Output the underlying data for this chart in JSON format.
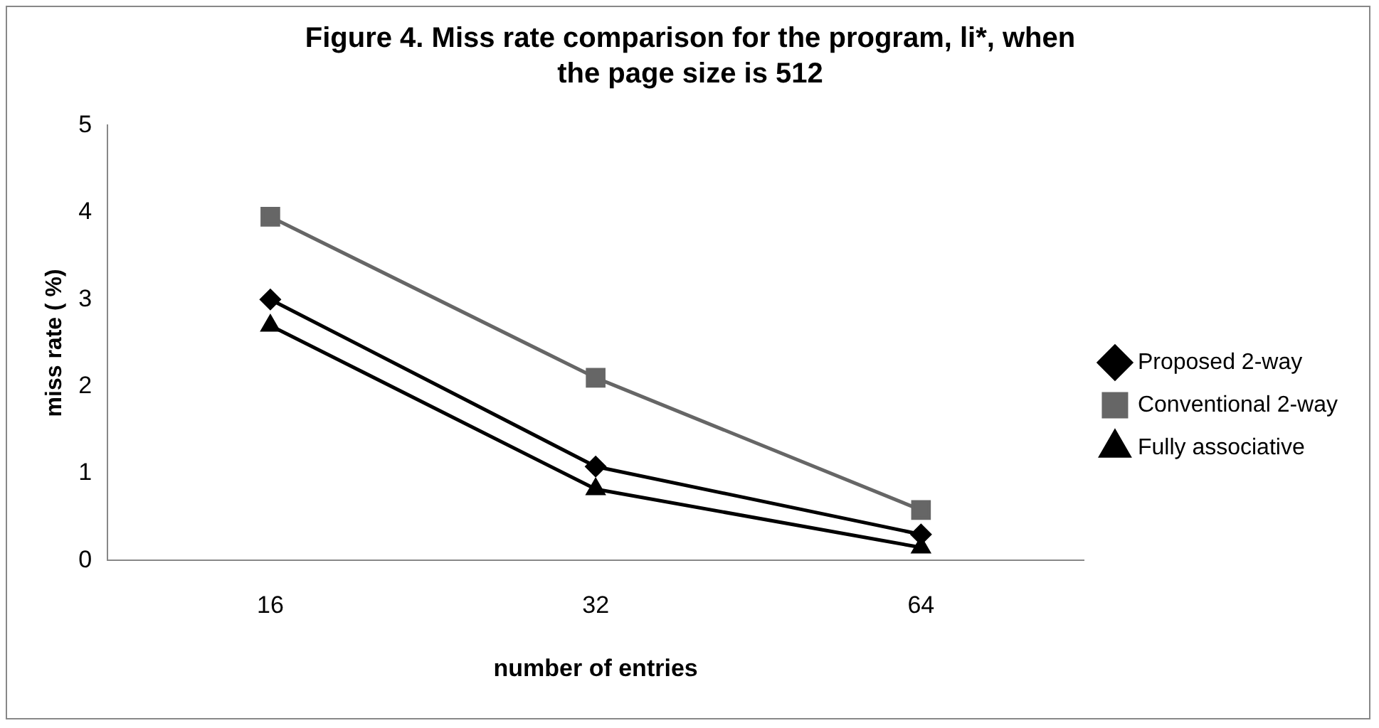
{
  "chart_data": {
    "type": "line",
    "title": "Figure 4. Miss rate comparison for the program, li*,  when the page size is 512",
    "xlabel": "number of entries",
    "ylabel": "miss rate ( %)",
    "categories": [
      "16",
      "32",
      "64"
    ],
    "ylim": [
      0,
      5
    ],
    "yticks": [
      0,
      1,
      2,
      3,
      4,
      5
    ],
    "grid": false,
    "legend": "right",
    "series": [
      {
        "name": "Proposed 2-way",
        "color": "#000000",
        "marker": "diamond",
        "values": [
          3.0,
          1.08,
          0.3
        ]
      },
      {
        "name": "Conventional 2-way",
        "color": "#666666",
        "marker": "square",
        "values": [
          3.95,
          2.1,
          0.58
        ]
      },
      {
        "name": "Fully associative",
        "color": "#000000",
        "marker": "triangle",
        "values": [
          2.7,
          0.82,
          0.15
        ]
      }
    ]
  }
}
